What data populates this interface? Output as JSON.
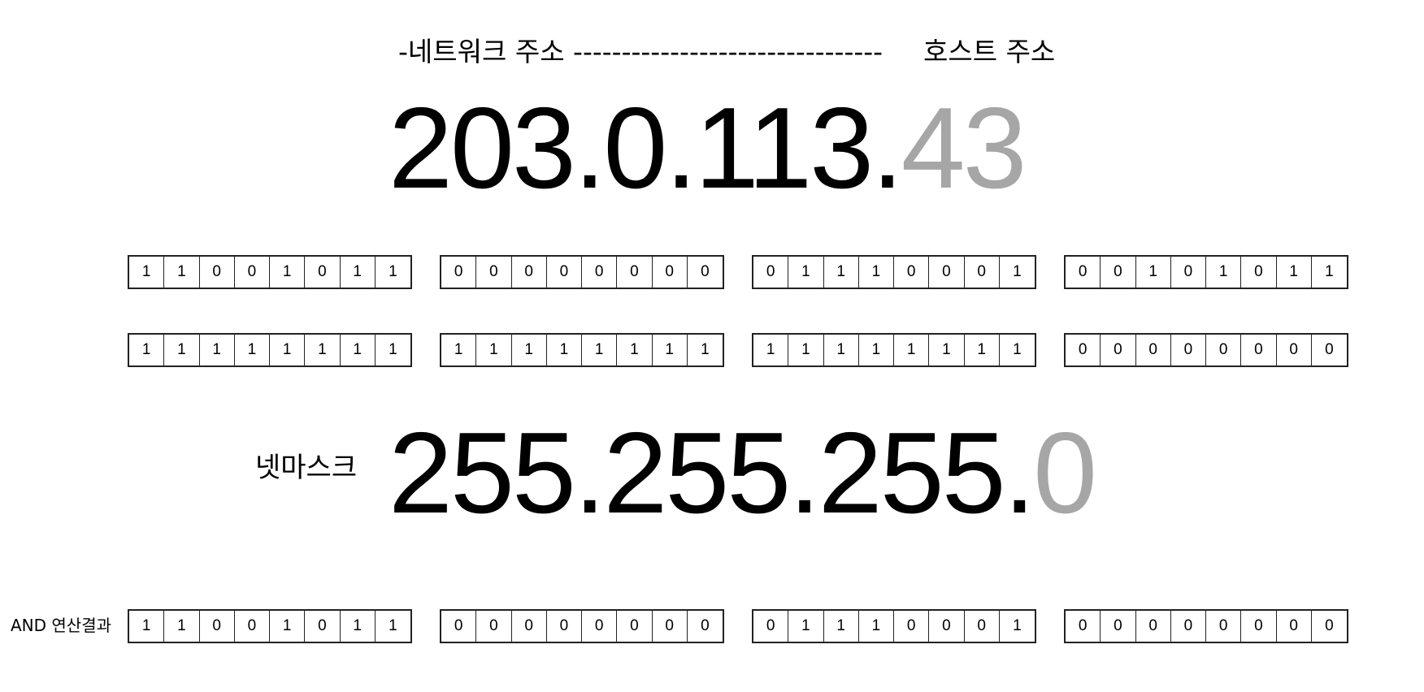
{
  "header": {
    "network_label": "-네트워크 주소 --------------------------------",
    "host_label": "호스트 주소"
  },
  "ip": {
    "network_part": "203.0.113.",
    "host_part": "43",
    "network_color": "#000000",
    "host_color": "#a6a6a6"
  },
  "netmask": {
    "label": "넷마스크",
    "network_part": "255.255.255.",
    "host_part": "0",
    "network_color": "#000000",
    "host_color": "#a6a6a6"
  },
  "and_result_label": "AND 연산결과",
  "bit_rows": [
    {
      "name": "ip-bits",
      "octets": [
        [
          "1",
          "1",
          "0",
          "0",
          "1",
          "0",
          "1",
          "1"
        ],
        [
          "0",
          "0",
          "0",
          "0",
          "0",
          "0",
          "0",
          "0"
        ],
        [
          "0",
          "1",
          "1",
          "1",
          "0",
          "0",
          "0",
          "1"
        ],
        [
          "0",
          "0",
          "1",
          "0",
          "1",
          "0",
          "1",
          "1"
        ]
      ]
    },
    {
      "name": "netmask-bits",
      "octets": [
        [
          "1",
          "1",
          "1",
          "1",
          "1",
          "1",
          "1",
          "1"
        ],
        [
          "1",
          "1",
          "1",
          "1",
          "1",
          "1",
          "1",
          "1"
        ],
        [
          "1",
          "1",
          "1",
          "1",
          "1",
          "1",
          "1",
          "1"
        ],
        [
          "0",
          "0",
          "0",
          "0",
          "0",
          "0",
          "0",
          "0"
        ]
      ]
    },
    {
      "name": "and-result-bits",
      "octets": [
        [
          "1",
          "1",
          "0",
          "0",
          "1",
          "0",
          "1",
          "1"
        ],
        [
          "0",
          "0",
          "0",
          "0",
          "0",
          "0",
          "0",
          "0"
        ],
        [
          "0",
          "1",
          "1",
          "1",
          "0",
          "0",
          "0",
          "1"
        ],
        [
          "0",
          "0",
          "0",
          "0",
          "0",
          "0",
          "0",
          "0"
        ]
      ]
    }
  ]
}
